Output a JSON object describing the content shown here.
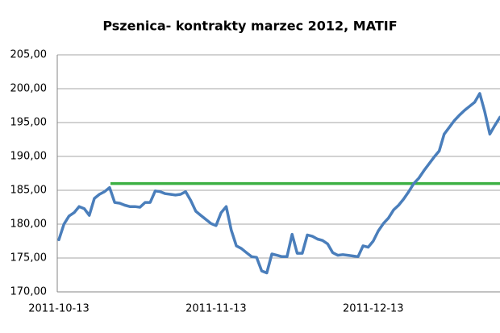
{
  "chart_data": {
    "type": "line",
    "title": "Pszenica- kontrakty marzec 2012, MATIF",
    "categories": [
      "2011-10-13",
      null,
      null,
      null,
      null,
      null,
      null,
      null,
      null,
      null,
      null,
      null,
      null,
      null,
      null,
      null,
      null,
      null,
      null,
      null,
      null,
      null,
      null,
      null,
      null,
      null,
      null,
      null,
      null,
      null,
      null,
      "2011-11-13",
      null,
      null,
      null,
      null,
      null,
      null,
      null,
      null,
      null,
      null,
      null,
      null,
      null,
      null,
      null,
      null,
      null,
      null,
      null,
      null,
      null,
      null,
      null,
      null,
      null,
      null,
      null,
      null,
      null,
      null,
      "2011-12-13",
      null,
      null,
      null,
      null,
      null,
      null,
      null,
      null,
      null,
      null,
      null,
      null,
      null,
      null,
      null,
      null,
      null,
      null,
      null,
      null,
      null,
      null,
      null,
      null,
      null
    ],
    "values": [
      177.7,
      180.0,
      181.2,
      181.7,
      182.6,
      182.3,
      181.3,
      183.8,
      184.4,
      184.8,
      185.4,
      183.2,
      183.1,
      182.8,
      182.6,
      182.6,
      182.5,
      183.2,
      183.2,
      184.9,
      184.8,
      184.5,
      184.4,
      184.3,
      184.4,
      184.8,
      183.5,
      181.9,
      181.3,
      180.7,
      180.1,
      179.8,
      181.7,
      182.6,
      179.1,
      176.8,
      176.4,
      175.8,
      175.2,
      175.1,
      173.1,
      172.8,
      175.6,
      175.4,
      175.2,
      175.2,
      178.5,
      175.7,
      175.7,
      178.4,
      178.2,
      177.8,
      177.6,
      177.1,
      175.8,
      175.4,
      175.5,
      175.4,
      175.3,
      175.2,
      176.8,
      176.6,
      177.5,
      179.0,
      180.1,
      180.9,
      182.1,
      182.8,
      183.7,
      184.8,
      186.0,
      186.8,
      187.9,
      188.9,
      189.9,
      190.8,
      193.3,
      194.3,
      195.3,
      196.1,
      196.8,
      197.4,
      198.0,
      199.3,
      196.6,
      193.3,
      194.6,
      195.8
    ],
    "color": "#4a7ebb",
    "reference_line": {
      "value": 186,
      "color": "#3cb043"
    },
    "ylim": [
      170,
      205
    ],
    "yticks": [
      {
        "value": 170,
        "label": "170,00"
      },
      {
        "value": 175,
        "label": "175,00"
      },
      {
        "value": 180,
        "label": "180,00"
      },
      {
        "value": 185,
        "label": "185,00"
      },
      {
        "value": 190,
        "label": "190,00"
      },
      {
        "value": 195,
        "label": "195,00"
      },
      {
        "value": 200,
        "label": "200,00"
      },
      {
        "value": 205,
        "label": "205,00"
      }
    ],
    "grid": true
  }
}
